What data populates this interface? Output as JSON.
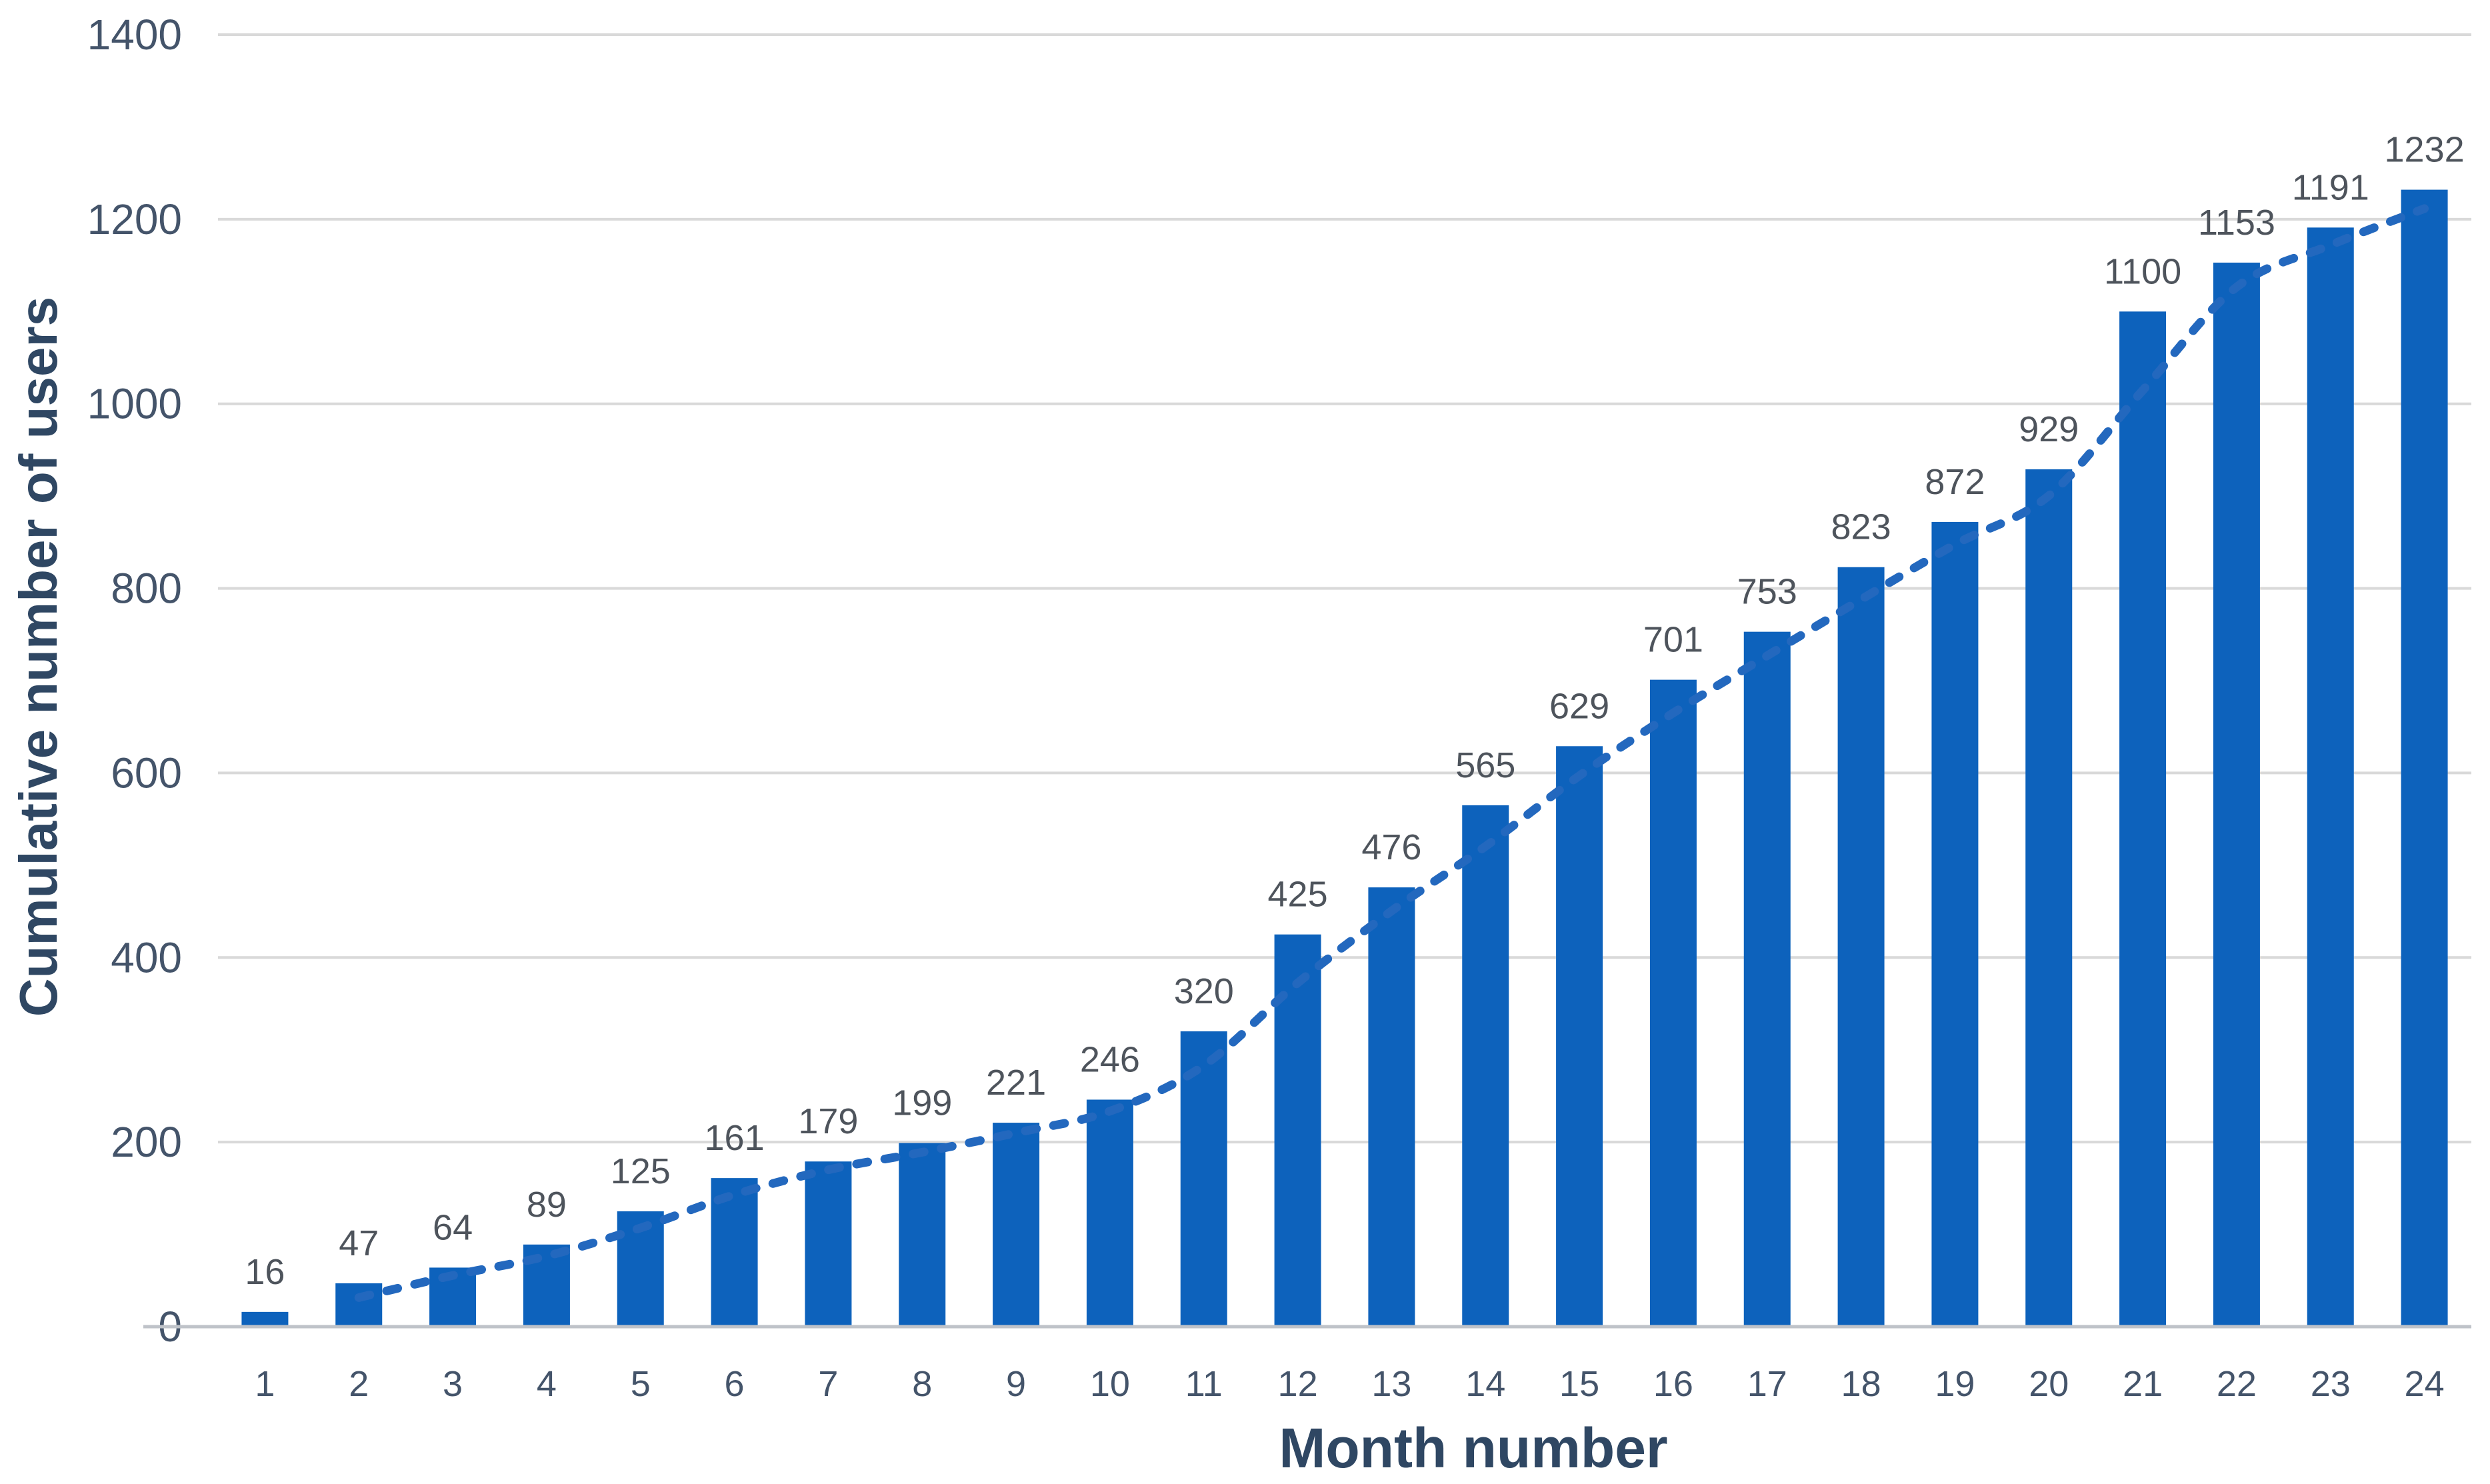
{
  "chart_data": {
    "type": "bar",
    "title": "",
    "xlabel": "Month number",
    "ylabel": "Cumulative number of users",
    "categories": [
      "1",
      "2",
      "3",
      "4",
      "5",
      "6",
      "7",
      "8",
      "9",
      "10",
      "11",
      "12",
      "13",
      "14",
      "15",
      "16",
      "17",
      "18",
      "19",
      "20",
      "21",
      "22",
      "23",
      "24"
    ],
    "series": [
      {
        "name": "Cumulative number of users",
        "type": "column",
        "values": [
          16,
          47,
          64,
          89,
          125,
          161,
          179,
          199,
          221,
          246,
          320,
          425,
          476,
          565,
          629,
          701,
          753,
          823,
          872,
          929,
          1100,
          1153,
          1191,
          1232
        ]
      }
    ],
    "data_labels": [
      16,
      47,
      64,
      89,
      125,
      161,
      179,
      199,
      221,
      246,
      320,
      425,
      476,
      565,
      629,
      701,
      753,
      823,
      872,
      929,
      1100,
      1153,
      1191,
      1232
    ],
    "trendline": {
      "type": "moving_average",
      "period": 2,
      "style": "dashed"
    },
    "ylim": [
      0,
      1400
    ],
    "yticks": [
      0,
      200,
      400,
      600,
      800,
      1000,
      1200,
      1400
    ],
    "grid": "horizontal",
    "legend": "none",
    "colors": {
      "bar": "#0D62BC",
      "trendline": "#2368BE",
      "gridline": "#D9D9D9",
      "axis_line": "#BFC3C9",
      "tick_text": "#44546A",
      "data_label_text": "#4E545C",
      "axis_title_text": "#2F4763",
      "background": "#FFFFFF"
    }
  }
}
